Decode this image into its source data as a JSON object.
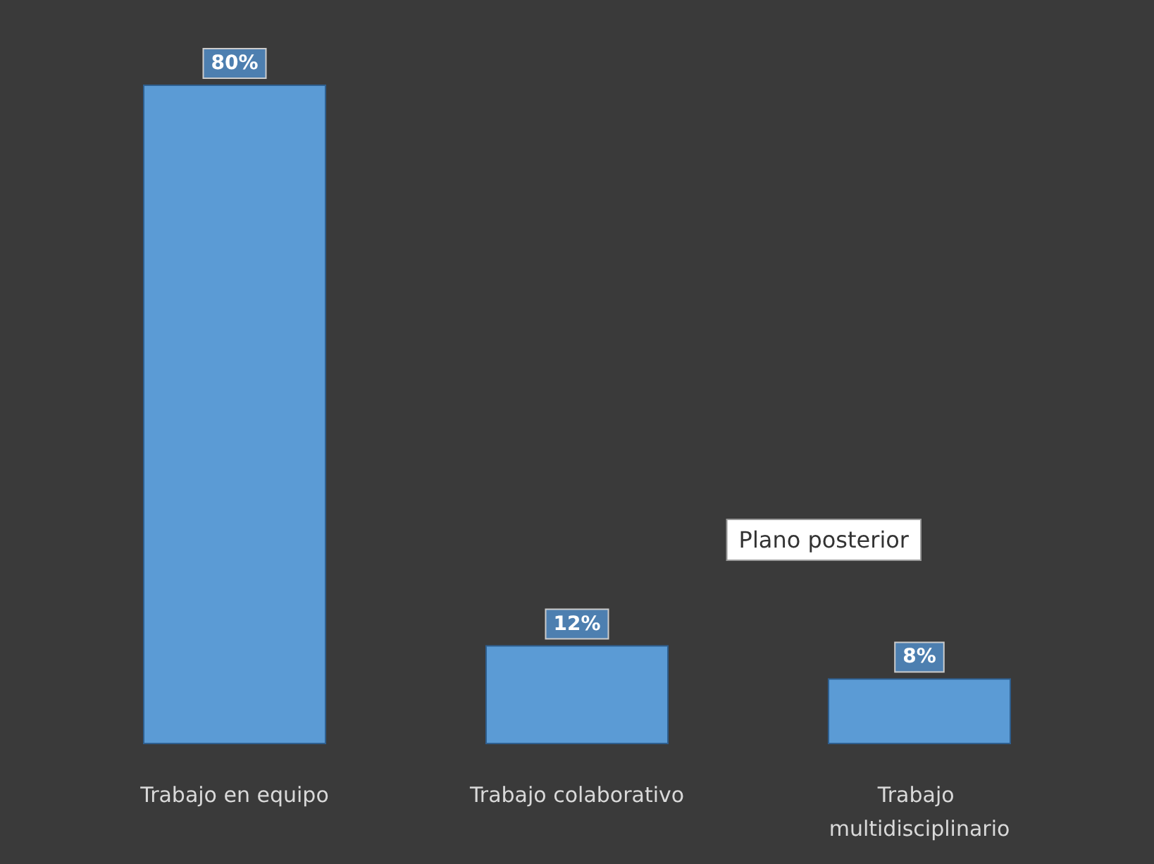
{
  "chart_data": {
    "type": "bar",
    "categories": [
      "Trabajo en equipo",
      "Trabajo colaborativo",
      "Trabajo multidisciplinario"
    ],
    "values": [
      80,
      12,
      8
    ],
    "value_labels": [
      "80%",
      "12%",
      "8%"
    ],
    "color": "#5b9bd5",
    "annotations": [
      "Plano posterior"
    ]
  }
}
